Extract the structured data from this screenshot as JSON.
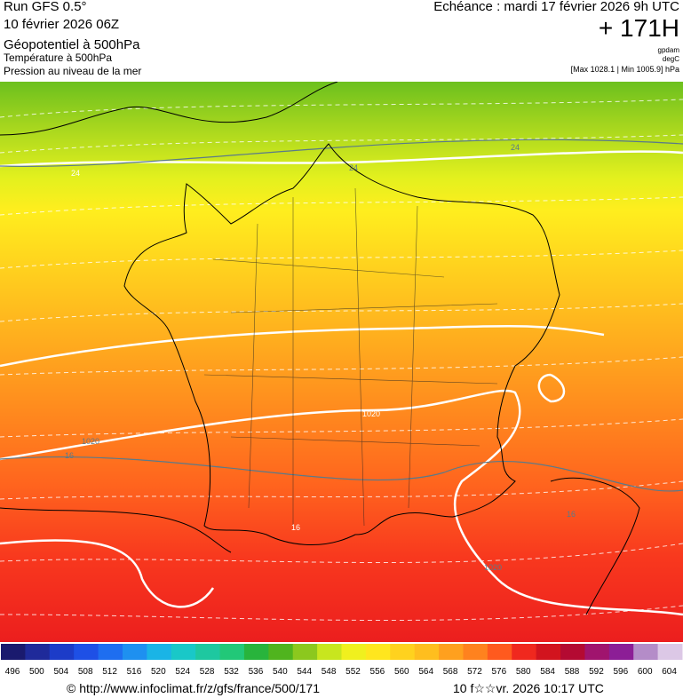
{
  "header": {
    "run": "Run GFS 0.5°",
    "run_date": "10 février 2026 06Z",
    "layer1": "Géopotentiel à 500hPa",
    "layer2": "Température à 500hPa",
    "layer3": "Pression au niveau de la mer",
    "valid": "Echéance : mardi 17 février 2026 9h UTC",
    "lead": "+ 171H",
    "unit1": "gpdam",
    "unit2": "degC",
    "pressure_range": "[Max 1028.1 | Min 1005.9] hPa"
  },
  "map": {
    "contour_labels": [
      "24",
      "24",
      "24",
      "1020",
      "1020",
      "16",
      "16",
      "16",
      "1020"
    ]
  },
  "colorbar": {
    "ticks": [
      496,
      500,
      504,
      508,
      512,
      516,
      520,
      524,
      528,
      532,
      536,
      540,
      544,
      548,
      552,
      556,
      560,
      564,
      568,
      572,
      576,
      580,
      584,
      588,
      592,
      596,
      600,
      604
    ],
    "colors": [
      "#1a1a6e",
      "#1f2a9a",
      "#1c3cc8",
      "#1e50e6",
      "#1e6ef0",
      "#1e90f0",
      "#1ab4e6",
      "#19c8c8",
      "#1ec8a0",
      "#22c878",
      "#28b43c",
      "#50b41e",
      "#8cc81e",
      "#c8e61e",
      "#f0f01e",
      "#ffe61e",
      "#ffd21e",
      "#ffbe1e",
      "#ffa01e",
      "#ff821e",
      "#ff5a1e",
      "#f0281e",
      "#d2141e",
      "#b40a32",
      "#a0146e",
      "#8c1e96",
      "#b48cc8",
      "#dcc8e6"
    ]
  },
  "footer": {
    "url": "© http://www.infoclimat.fr/z/gfs/france/500/171",
    "generated": "10 f☆☆vr. 2026 10:17 UTC"
  }
}
